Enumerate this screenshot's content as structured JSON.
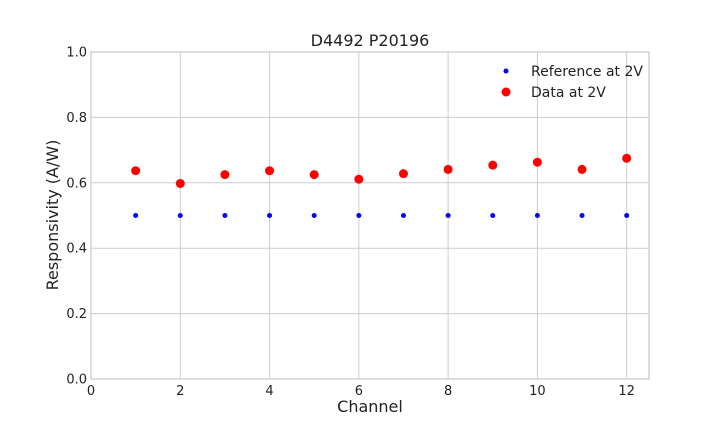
{
  "chart_data": {
    "type": "scatter",
    "title": "D4492 P20196",
    "xlabel": "Channel",
    "ylabel": "Responsivity (A/W)",
    "xlim": [
      0,
      12.5
    ],
    "ylim": [
      0.0,
      1.0
    ],
    "xticks": [
      0,
      2,
      4,
      6,
      8,
      10,
      12
    ],
    "yticks": [
      0.0,
      0.2,
      0.4,
      0.6,
      0.8,
      1.0
    ],
    "xtick_labels": [
      "0",
      "2",
      "4",
      "6",
      "8",
      "10",
      "12"
    ],
    "ytick_labels": [
      "0.0",
      "0.2",
      "0.4",
      "0.6",
      "0.8",
      "1.0"
    ],
    "grid": true,
    "legend_position": "top-right",
    "series": [
      {
        "name": "Reference at 2V",
        "color": "#0000ff",
        "marker": "small-dot",
        "x": [
          1,
          2,
          3,
          4,
          5,
          6,
          7,
          8,
          9,
          10,
          11,
          12
        ],
        "y": [
          0.5,
          0.5,
          0.5,
          0.5,
          0.5,
          0.5,
          0.5,
          0.5,
          0.5,
          0.5,
          0.5,
          0.5
        ]
      },
      {
        "name": "Data at 2V",
        "color": "#ff0000",
        "marker": "large-dot",
        "x": [
          1,
          2,
          3,
          4,
          5,
          6,
          7,
          8,
          9,
          10,
          11,
          12
        ],
        "y": [
          0.637,
          0.598,
          0.625,
          0.637,
          0.625,
          0.611,
          0.628,
          0.641,
          0.654,
          0.663,
          0.641,
          0.675
        ]
      }
    ]
  }
}
